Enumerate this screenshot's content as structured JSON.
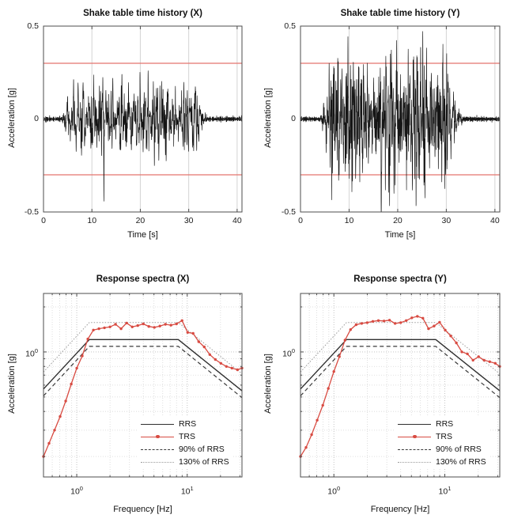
{
  "colors": {
    "background": "#ffffff",
    "trace": "#151515",
    "threshold_line": "#e4746e",
    "grid_major": "#bdbdbd",
    "grid_minor": "#d6d6d6",
    "grid_time": "#d4d4d4",
    "axis_box": "#4d4d4d",
    "rrs": "#2f2f2f",
    "trs": "#d84b42",
    "rrs90": "#3a3a3a",
    "rrs130": "#9b9b9b"
  },
  "chart_data": [
    {
      "id": "time-history-x",
      "type": "line",
      "title": "Shake table time history (X)",
      "xlabel": "Time [s]",
      "ylabel": "Acceleration [g]",
      "xlim": [
        0,
        41
      ],
      "ylim": [
        -0.5,
        0.5
      ],
      "x_ticks": [
        0,
        10,
        20,
        30,
        40
      ],
      "x_tick_labels": [
        "0",
        "10",
        "20",
        "30",
        "40"
      ],
      "y_ticks": [
        0.5,
        0,
        -0.5
      ],
      "y_tick_labels": [
        "0.5",
        "0",
        "-0.5"
      ],
      "grid": "vertical-major",
      "threshold_lines_g": [
        0.3,
        -0.3
      ],
      "signal": {
        "description": "broadband random shake-table record",
        "duration_s": 41,
        "strong_motion_window_s": [
          3.6,
          33.8
        ],
        "peak_g": 0.45,
        "pre_event_noise_g": 0.016,
        "seed": 20240
      }
    },
    {
      "id": "time-history-y",
      "type": "line",
      "title": "Shake table time history (Y)",
      "xlabel": "Time [s]",
      "ylabel": "Acceleration [g]",
      "xlim": [
        0,
        41
      ],
      "ylim": [
        -0.5,
        0.5
      ],
      "x_ticks": [
        0,
        10,
        20,
        30,
        40
      ],
      "x_tick_labels": [
        "0",
        "10",
        "20",
        "30",
        "40"
      ],
      "y_ticks": [
        0.5,
        0,
        -0.5
      ],
      "y_tick_labels": [
        "0.5",
        "0",
        "-0.5"
      ],
      "grid": "vertical-major",
      "threshold_lines_g": [
        0.3,
        -0.3
      ],
      "signal": {
        "description": "broadband random shake-table record",
        "duration_s": 41,
        "strong_motion_window_s": [
          4.0,
          33.5
        ],
        "peak_g": 0.47,
        "pre_event_noise_g": 0.016,
        "seed": 77031,
        "negative_spike": {
          "t_s": 16.6,
          "amp_g": -0.52
        }
      }
    },
    {
      "id": "response-spectra-x",
      "type": "line-log",
      "title": "Response spectra (X)",
      "xlabel": "Frequency [Hz]",
      "ylabel": "Acceleration [g]",
      "xlim": [
        0.5,
        31.3
      ],
      "ylim": [
        0.146,
        2.46
      ],
      "x_major_ticks": [
        1,
        10
      ],
      "x_tick_display": [
        {
          "b": "10",
          "e": "0"
        },
        {
          "b": "10",
          "e": "1"
        }
      ],
      "x_minor_ticks": [
        0.6,
        0.7,
        0.8,
        0.9,
        2,
        3,
        4,
        5,
        6,
        7,
        8,
        9,
        20,
        30
      ],
      "y_major_ticks": [
        1
      ],
      "y_tick_display": [
        {
          "b": "10",
          "e": "0"
        }
      ],
      "y_minor_ticks": [
        0.2,
        0.3,
        0.4,
        0.5,
        0.6,
        0.7,
        0.8,
        0.9,
        2
      ],
      "grid": "log-dotted-both",
      "legend": [
        "RRS",
        "TRS",
        "90% of RRS",
        "130% of RRS"
      ],
      "rrs_corners_hz_g": [
        [
          0.5,
          0.565
        ],
        [
          1.3,
          1.21
        ],
        [
          8.3,
          1.21
        ],
        [
          31.3,
          0.55
        ]
      ],
      "rrs_90_factor": 0.9,
      "rrs_130_factor": 1.3,
      "trs": {
        "f_hz": [
          0.5,
          0.561,
          0.63,
          0.707,
          0.794,
          0.891,
          1.0,
          1.122,
          1.26,
          1.414,
          1.587,
          1.782,
          2.0,
          2.245,
          2.52,
          2.828,
          3.175,
          3.564,
          4.0,
          4.49,
          5.04,
          5.657,
          6.35,
          7.127,
          8.0,
          8.98,
          10.08,
          11.31,
          12.7,
          14.25,
          16.0,
          17.96,
          20.16,
          22.63,
          25.4,
          28.51,
          31.3
        ],
        "a_g": [
          0.2,
          0.245,
          0.3,
          0.37,
          0.47,
          0.61,
          0.78,
          0.94,
          1.22,
          1.4,
          1.43,
          1.45,
          1.47,
          1.53,
          1.43,
          1.56,
          1.47,
          1.5,
          1.54,
          1.48,
          1.46,
          1.49,
          1.53,
          1.51,
          1.54,
          1.62,
          1.35,
          1.33,
          1.17,
          1.08,
          0.96,
          0.89,
          0.84,
          0.8,
          0.78,
          0.76,
          0.78
        ]
      }
    },
    {
      "id": "response-spectra-y",
      "type": "line-log",
      "title": "Response spectra (Y)",
      "xlabel": "Frequency [Hz]",
      "ylabel": "Acceleration [g]",
      "xlim": [
        0.5,
        31.3
      ],
      "ylim": [
        0.146,
        2.46
      ],
      "x_major_ticks": [
        1,
        10
      ],
      "x_tick_display": [
        {
          "b": "10",
          "e": "0"
        },
        {
          "b": "10",
          "e": "1"
        }
      ],
      "x_minor_ticks": [
        0.6,
        0.7,
        0.8,
        0.9,
        2,
        3,
        4,
        5,
        6,
        7,
        8,
        9,
        20,
        30
      ],
      "y_major_ticks": [
        1
      ],
      "y_tick_display": [
        {
          "b": "10",
          "e": "0"
        }
      ],
      "y_minor_ticks": [
        0.2,
        0.3,
        0.4,
        0.5,
        0.6,
        0.7,
        0.8,
        0.9,
        2
      ],
      "grid": "log-dotted-both",
      "legend": [
        "RRS",
        "TRS",
        "90% of RRS",
        "130% of RRS"
      ],
      "rrs_corners_hz_g": [
        [
          0.5,
          0.565
        ],
        [
          1.3,
          1.21
        ],
        [
          8.3,
          1.21
        ],
        [
          31.3,
          0.55
        ]
      ],
      "rrs_90_factor": 0.9,
      "rrs_130_factor": 1.3,
      "trs": {
        "f_hz": [
          0.5,
          0.561,
          0.63,
          0.707,
          0.794,
          0.891,
          1.0,
          1.122,
          1.26,
          1.414,
          1.587,
          1.782,
          2.0,
          2.245,
          2.52,
          2.828,
          3.175,
          3.564,
          4.0,
          4.49,
          5.04,
          5.657,
          6.35,
          7.127,
          8.0,
          8.98,
          10.08,
          11.31,
          12.7,
          14.25,
          16.0,
          17.96,
          20.16,
          22.63,
          25.4,
          28.51,
          31.3
        ],
        "a_g": [
          0.2,
          0.23,
          0.28,
          0.35,
          0.44,
          0.57,
          0.74,
          0.93,
          1.2,
          1.41,
          1.52,
          1.55,
          1.57,
          1.6,
          1.62,
          1.61,
          1.63,
          1.55,
          1.57,
          1.62,
          1.69,
          1.73,
          1.68,
          1.43,
          1.49,
          1.58,
          1.4,
          1.28,
          1.15,
          1.0,
          0.97,
          0.88,
          0.93,
          0.88,
          0.86,
          0.84,
          0.8
        ]
      }
    }
  ]
}
